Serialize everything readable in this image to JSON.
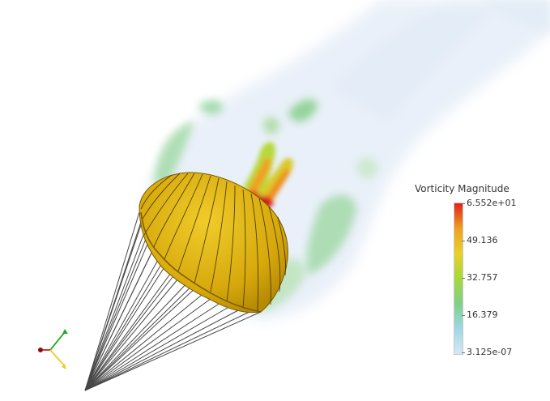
{
  "legend": {
    "title": "Vorticity Magnitude",
    "max_label": "6.552e+01",
    "ticks": [
      "49.136",
      "32.757",
      "16.379"
    ],
    "min_label": "3.125e-07",
    "colors": [
      "#d9e6f5",
      "#9fd8e6",
      "#7fd08a",
      "#a6d83a",
      "#e8d12a",
      "#f0a020",
      "#e0221a"
    ]
  },
  "scene": {
    "object": "parachute-canopy",
    "canopy_color": "#d9b010",
    "line_color": "#333333",
    "axes_colors": {
      "x": "#cc2020",
      "y": "#22aa22",
      "z": "#e6d020"
    }
  }
}
